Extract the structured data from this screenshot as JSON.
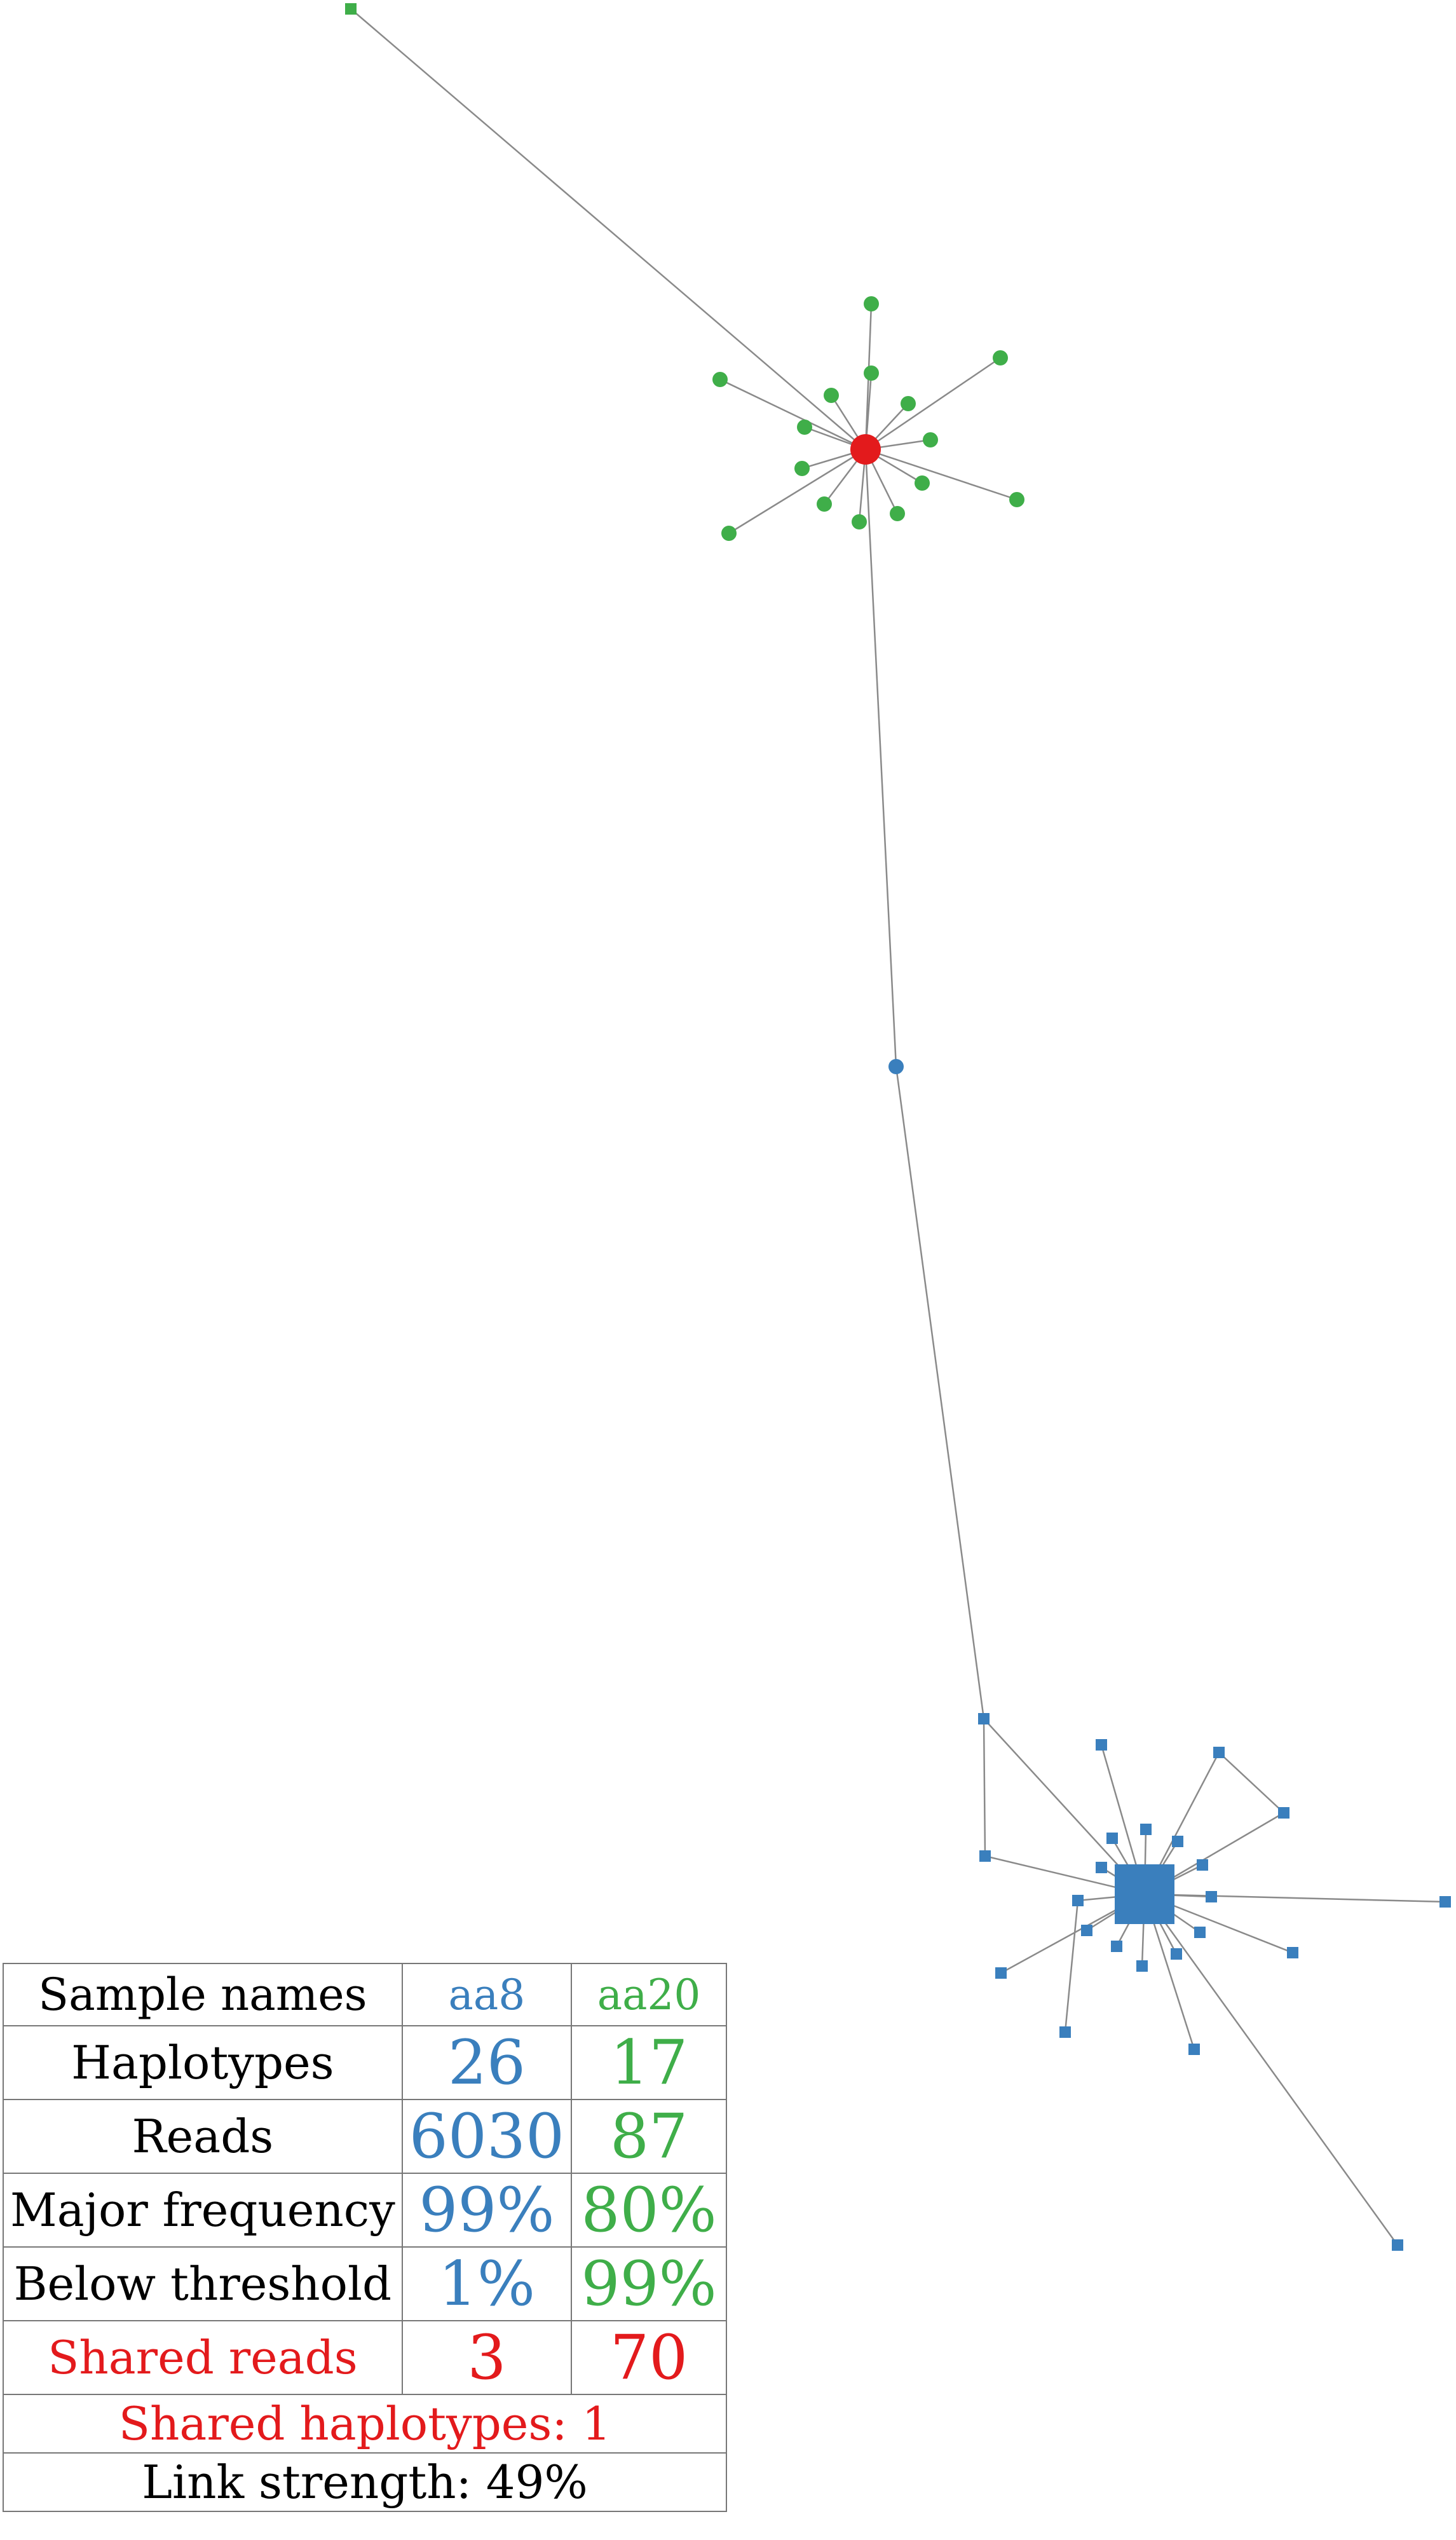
{
  "colors": {
    "sample_a": "#3a7fbd",
    "sample_b": "#3fae49",
    "shared": "#e31a1c",
    "edge": "#8a8a8a"
  },
  "network": {
    "groups": [
      "aa8",
      "aa20",
      "shared"
    ]
  },
  "table": {
    "rows": [
      {
        "label": "Sample names",
        "aa8": "aa8",
        "aa20": "aa20"
      },
      {
        "label": "Haplotypes",
        "aa8": "26",
        "aa20": "17"
      },
      {
        "label": "Reads",
        "aa8": "6030",
        "aa20": "87"
      },
      {
        "label": "Major frequency",
        "aa8": "99%",
        "aa20": "80%"
      },
      {
        "label": "Below threshold",
        "aa8": "1%",
        "aa20": "99%"
      },
      {
        "label": "Shared reads",
        "aa8": "3",
        "aa20": "70"
      }
    ],
    "shared_haplotypes": "Shared haplotypes: 1",
    "link_strength": "Link strength: 49%"
  }
}
